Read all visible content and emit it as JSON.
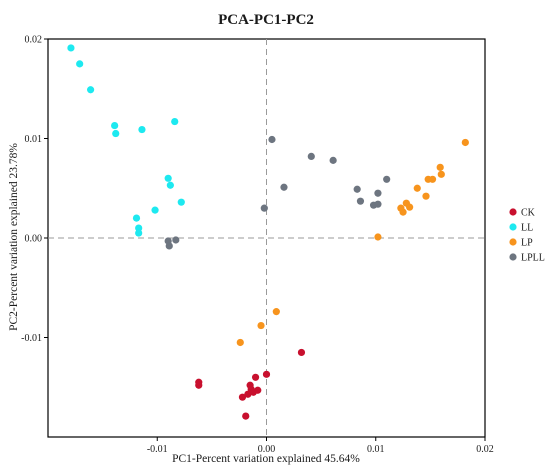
{
  "chart_data": {
    "type": "scatter",
    "title": "PCA-PC1-PC2",
    "xlabel": "PC1-Percent variation explained 45.64%",
    "ylabel": "PC2-Percent variation explained 23.78%",
    "xlim": [
      -0.02,
      0.02
    ],
    "ylim": [
      -0.02,
      0.02
    ],
    "xticks": [
      -0.01,
      0.0,
      0.01,
      0.02
    ],
    "xtick_labels": [
      "-0.01",
      "0.00",
      "0.01",
      "0.02"
    ],
    "yticks": [
      -0.01,
      0.0,
      0.01,
      0.02
    ],
    "ytick_labels": [
      "-0.01",
      "0.00",
      "0.01",
      "0.02"
    ],
    "reference_lines": {
      "x": 0,
      "y": 0,
      "style": "dashed"
    },
    "grid": false,
    "legend_position": "right",
    "series": [
      {
        "name": "CK",
        "color": "#c8102e",
        "points": [
          [
            -0.0062,
            -0.0145
          ],
          [
            -0.0062,
            -0.0148
          ],
          [
            -0.0015,
            -0.0148
          ],
          [
            -0.0014,
            -0.0152
          ],
          [
            -0.0017,
            -0.0157
          ],
          [
            -0.001,
            -0.014
          ],
          [
            -0.0012,
            -0.0155
          ],
          [
            -0.0008,
            -0.0153
          ],
          [
            -0.0022,
            -0.016
          ],
          [
            0.0,
            -0.0137
          ],
          [
            -0.0019,
            -0.0179
          ],
          [
            0.0032,
            -0.0115
          ]
        ]
      },
      {
        "name": "LL",
        "color": "#1de9f0",
        "points": [
          [
            -0.0179,
            0.0191
          ],
          [
            -0.0171,
            0.0175
          ],
          [
            -0.0161,
            0.0149
          ],
          [
            -0.0139,
            0.0113
          ],
          [
            -0.0138,
            0.0105
          ],
          [
            -0.0114,
            0.0109
          ],
          [
            -0.0084,
            0.0117
          ],
          [
            -0.009,
            0.006
          ],
          [
            -0.0088,
            0.0053
          ],
          [
            -0.0078,
            0.0036
          ],
          [
            -0.0102,
            0.0028
          ],
          [
            -0.0119,
            0.002
          ],
          [
            -0.0117,
            0.001
          ],
          [
            -0.0117,
            0.0005
          ]
        ]
      },
      {
        "name": "LP",
        "color": "#f7941d",
        "points": [
          [
            0.0182,
            0.0096
          ],
          [
            0.0159,
            0.0071
          ],
          [
            0.016,
            0.0064
          ],
          [
            0.0152,
            0.0059
          ],
          [
            0.0148,
            0.0059
          ],
          [
            0.0138,
            0.005
          ],
          [
            0.0146,
            0.0042
          ],
          [
            0.0128,
            0.0035
          ],
          [
            0.0131,
            0.0031
          ],
          [
            0.0123,
            0.003
          ],
          [
            0.0125,
            0.0026
          ],
          [
            0.0102,
            0.0001
          ],
          [
            0.0009,
            -0.0074
          ],
          [
            -0.0005,
            -0.0088
          ],
          [
            -0.0024,
            -0.0105
          ]
        ]
      },
      {
        "name": "LPLL",
        "color": "#6d7580",
        "points": [
          [
            0.0005,
            0.0099
          ],
          [
            0.0041,
            0.0082
          ],
          [
            0.0061,
            0.0078
          ],
          [
            0.011,
            0.0059
          ],
          [
            0.0016,
            0.0051
          ],
          [
            0.0083,
            0.0049
          ],
          [
            0.0102,
            0.0045
          ],
          [
            0.0086,
            0.0037
          ],
          [
            0.0098,
            0.0033
          ],
          [
            0.0102,
            0.0034
          ],
          [
            -0.0002,
            0.003
          ],
          [
            -0.009,
            -0.0003
          ],
          [
            -0.0083,
            -0.0002
          ],
          [
            -0.0089,
            -0.0008
          ]
        ]
      }
    ]
  }
}
